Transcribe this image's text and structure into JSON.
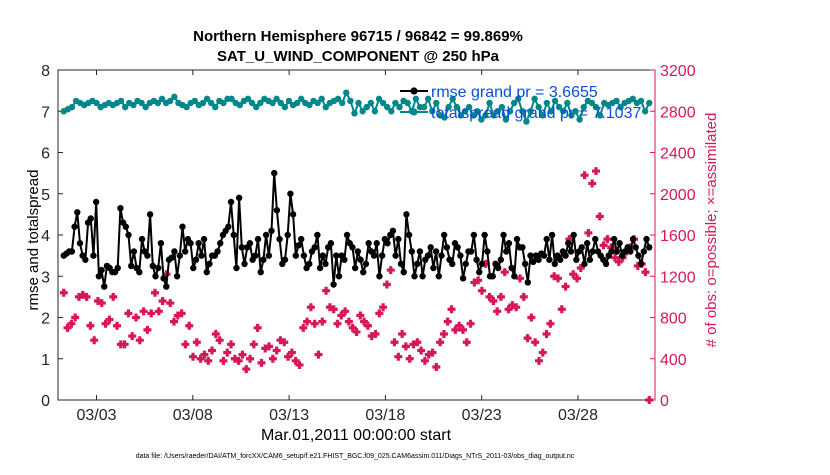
{
  "title_line1": "Northern Hemisphere 96715 / 96842 = 99.869%",
  "title_line2": "SAT_U_WIND_COMPONENT @ 250 hPa",
  "xlabel": "Mar.01,2011 00:00:00 start",
  "ylabel_left": "rmse and totalspread",
  "ylabel_right": "# of obs: o=possible; ×=assimilated",
  "footnote": "data file: /Users/raeder/DAI/ATM_forcXX/CAM6_setup/f.e21.FHIST_BGC.f09_025.CAM6assim.011/Diags_NTrS_2011-03/obs_diag_output.nc",
  "colors": {
    "rmse": "#000000",
    "spread": "#00878a",
    "obs": "#d6185a",
    "legend_text": "#0a4fd6"
  },
  "chart_data": {
    "type": "line",
    "x_units": "days since Mar.01,2011 00:00:00",
    "xlim": [
      0.5,
      31.5
    ],
    "x_ticks": [
      {
        "x": 2.5,
        "label": "03/03"
      },
      {
        "x": 7.5,
        "label": "03/08"
      },
      {
        "x": 12.5,
        "label": "03/13"
      },
      {
        "x": 17.5,
        "label": "03/18"
      },
      {
        "x": 22.5,
        "label": "03/23"
      },
      {
        "x": 27.5,
        "label": "03/28"
      }
    ],
    "ylim_left": [
      0,
      8
    ],
    "yticks_left": [
      0,
      1,
      2,
      3,
      4,
      5,
      6,
      7,
      8
    ],
    "ylim_right": [
      0,
      3200
    ],
    "yticks_right": [
      0,
      400,
      800,
      1200,
      1600,
      2000,
      2400,
      2800,
      3200
    ],
    "legend": [
      {
        "label": "rmse grand pr = 3.6655",
        "series": "rmse"
      },
      {
        "label": "totalspread grand pr = 7.1037",
        "series": "spread"
      }
    ],
    "series": [
      {
        "name": "rmse",
        "axis": "left",
        "values": [
          3.5,
          3.55,
          3.6,
          3.6,
          4.2,
          4.55,
          3.8,
          3.5,
          3.4,
          4.3,
          4.4,
          3.5,
          4.8,
          3.0,
          3.15,
          2.75,
          3.25,
          3.2,
          3.1,
          3.1,
          3.2,
          4.65,
          4.3,
          4.2,
          4.0,
          3.25,
          3.6,
          3.2,
          3.1,
          3.9,
          3.6,
          3.5,
          4.5,
          3.25,
          3.0,
          3.2,
          3.8,
          2.95,
          2.75,
          3.4,
          3.45,
          3.6,
          3.0,
          3.5,
          4.2,
          3.6,
          3.9,
          3.8,
          3.2,
          3.4,
          3.8,
          3.5,
          3.9,
          3.1,
          3.3,
          3.5,
          3.5,
          3.6,
          3.8,
          4.0,
          4.1,
          4.2,
          4.8,
          4.0,
          3.2,
          4.9,
          3.7,
          3.3,
          3.7,
          3.8,
          3.4,
          3.5,
          3.9,
          3.1,
          3.4,
          4.0,
          3.5,
          4.1,
          5.5,
          4.6,
          3.9,
          3.3,
          3.4,
          4.0,
          5.0,
          4.5,
          3.5,
          3.75,
          3.9,
          3.5,
          3.2,
          3.3,
          3.6,
          3.7,
          4.0,
          3.2,
          3.5,
          3.3,
          3.7,
          3.8,
          2.8,
          3.5,
          3.0,
          3.5,
          3.4,
          4.0,
          3.8,
          3.7,
          3.2,
          3.6,
          3.4,
          3.1,
          3.3,
          3.8,
          3.6,
          3.5,
          3.8,
          3.0,
          3.5,
          3.9,
          3.8,
          4.0,
          4.1,
          3.5,
          3.9,
          3.3,
          3.1,
          4.5,
          4.0,
          3.6,
          3.0,
          3.3,
          3.6,
          3.0,
          3.4,
          3.5,
          3.7,
          3.2,
          3.6,
          3.0,
          3.5,
          4.0,
          3.7,
          3.4,
          3.3,
          3.8,
          3.7,
          3.5,
          2.95,
          3.3,
          3.6,
          3.6,
          4.0,
          3.4,
          3.1,
          3.3,
          4.0,
          3.6,
          3.0,
          3.0,
          3.3,
          3.2,
          3.4,
          4.0,
          3.6,
          3.8,
          3.2,
          3.0,
          3.9,
          3.7,
          3.7,
          3.3,
          2.85,
          3.5,
          3.35,
          3.5,
          3.4,
          3.55,
          3.5,
          3.9,
          3.4,
          4.0,
          3.3,
          3.5,
          3.4,
          3.6,
          3.5,
          3.8,
          3.6,
          4.0,
          3.4,
          3.6,
          3.7,
          3.3,
          3.8,
          3.4,
          3.6,
          3.9,
          3.6,
          3.5,
          3.4,
          3.3,
          3.5,
          3.6,
          3.9,
          3.6,
          3.8,
          3.5,
          3.6,
          3.7,
          3.6,
          3.9,
          3.7,
          3.5,
          3.3,
          3.6,
          3.9,
          3.7
        ]
      },
      {
        "name": "totalspread",
        "axis": "left",
        "values": [
          7.0,
          7.05,
          7.1,
          7.25,
          7.2,
          7.15,
          7.2,
          7.25,
          7.2,
          7.1,
          7.15,
          7.2,
          7.15,
          7.2,
          7.25,
          7.1,
          7.2,
          7.15,
          7.25,
          7.2,
          7.1,
          7.2,
          7.25,
          7.2,
          7.3,
          7.2,
          7.25,
          7.35,
          7.2,
          7.15,
          7.1,
          7.2,
          7.25,
          7.15,
          7.2,
          7.3,
          7.2,
          7.1,
          7.25,
          7.2,
          7.3,
          7.3,
          7.2,
          7.15,
          7.25,
          7.3,
          7.2,
          7.1,
          7.2,
          7.3,
          7.25,
          7.2,
          7.3,
          7.2,
          7.1,
          7.25,
          7.15,
          7.2,
          7.3,
          7.2,
          7.15,
          7.25,
          7.2,
          7.3,
          7.1,
          7.2,
          7.25,
          7.3,
          7.2,
          7.45,
          7.25,
          6.95,
          7.2,
          7.0,
          7.1,
          7.2,
          7.0,
          7.3,
          7.2,
          7.1,
          7.0,
          7.2,
          7.1,
          7.25,
          7.2,
          7.0,
          7.3,
          7.1,
          7.1,
          7.3,
          7.0,
          7.2,
          6.9,
          6.85,
          7.1,
          7.3,
          7.1,
          6.9,
          7.0,
          7.1,
          6.9,
          7.0,
          6.8,
          6.9,
          7.2,
          6.9,
          7.0,
          7.1,
          6.8,
          7.0,
          7.2,
          7.3,
          7.0,
          6.75,
          7.0,
          7.3,
          7.1,
          6.9,
          7.2,
          7.0,
          7.25,
          7.1,
          7.0,
          7.2,
          6.9,
          7.0,
          6.8,
          7.1,
          7.25,
          7.2,
          7.1,
          6.9,
          7.2,
          7.15,
          7.2,
          7.25,
          7.1,
          7.2,
          7.25,
          7.3,
          7.2,
          7.25,
          7.0,
          7.2
        ]
      },
      {
        "name": "obs possible",
        "axis": "right",
        "marker": "o",
        "values": [
          1040,
          700,
          740,
          800,
          1000,
          1020,
          1000,
          720,
          580,
          960,
          940,
          740,
          780,
          1000,
          720,
          540,
          540,
          840,
          620,
          800,
          580,
          860,
          680,
          840,
          1040,
          860,
          960,
          1220,
          940,
          760,
          820,
          840,
          540,
          720,
          420,
          560,
          400,
          440,
          380,
          480,
          640,
          580,
          380,
          460,
          540,
          400,
          380,
          440,
          300,
          400,
          540,
          700,
          360,
          500,
          520,
          400,
          480,
          580,
          560,
          420,
          460,
          380,
          340,
          700,
          760,
          900,
          740,
          440,
          760,
          1060,
          900,
          880,
          740,
          820,
          860,
          760,
          700,
          660,
          820,
          760,
          720,
          620,
          640,
          840,
          900,
          1120,
          1260,
          560,
          420,
          640,
          520,
          400,
          540,
          560,
          480,
          380,
          440,
          460,
          320,
          560,
          640,
          760,
          880,
          680,
          720,
          680,
          560,
          740,
          1140,
          1160,
          1060,
          1320,
          1000,
          960,
          860,
          1000,
          1240,
          880,
          920,
          900,
          1180,
          1000,
          600,
          800,
          560,
          380,
          460,
          640,
          740,
          1200,
          1180,
          880,
          1100,
          1560,
          1220,
          1180,
          1280,
          2180,
          1620,
          2100,
          2220,
          1780,
          1500,
          1560,
          1480,
          1380,
          1340,
          1380,
          1440,
          1480,
          1560,
          1300,
          1320,
          1240,
          0
        ]
      }
    ]
  }
}
